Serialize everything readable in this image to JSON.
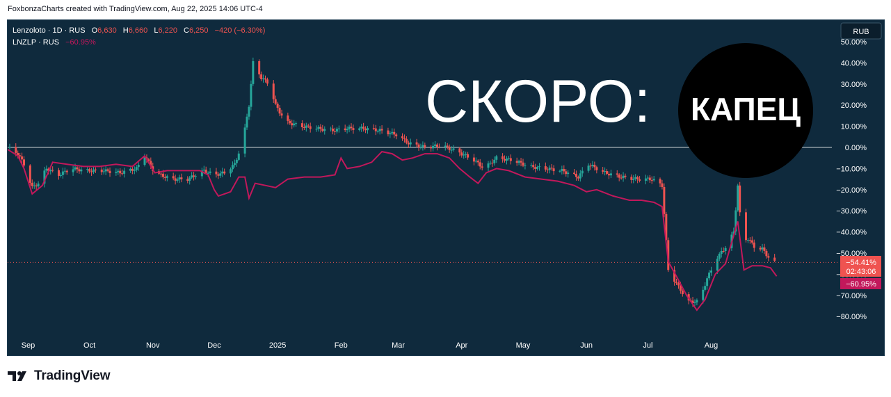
{
  "header": {
    "caption": "FoxbonzaCharts created with TradingView.com, Aug 22, 2025 14:06 UTC-4"
  },
  "legend": {
    "main": {
      "symbol": "Lenzoloto · 1D · RUS",
      "o_label": "O",
      "o_value": "6,630",
      "h_label": "H",
      "h_value": "6,660",
      "l_label": "L",
      "l_value": "6,220",
      "c_label": "C",
      "c_value": "6,250",
      "change": "−420 (−6.30%)"
    },
    "compare": {
      "symbol": "LNZLP · RUS",
      "value": "−60.95%"
    }
  },
  "currency_button": "RUB",
  "overlay": {
    "text": "СКОРО:",
    "badge_text": "КАПЕЦ"
  },
  "price_labels": {
    "last_pct": "−54.41%",
    "countdown": "02:43:06",
    "compare_pct": "−60.95%"
  },
  "footer": {
    "brand": "TradingView"
  },
  "colors": {
    "background": "#0f2a3d",
    "up": "#26a69a",
    "down": "#ef5350",
    "compare_line": "#c2185b",
    "axis_text": "#ffffff",
    "zero_line": "#ffffff"
  },
  "chart_data": {
    "type": "line",
    "y_scale": "percent",
    "ylim": [
      -90,
      50
    ],
    "y_ticks": [
      "50.00%",
      "40.00%",
      "30.00%",
      "20.00%",
      "10.00%",
      "0.00%",
      "−10.00%",
      "−20.00%",
      "−30.00%",
      "−40.00%",
      "−50.00%",
      "−60.00%",
      "−70.00%",
      "−80.00%"
    ],
    "y_tick_values": [
      50,
      40,
      30,
      20,
      10,
      0,
      -10,
      -20,
      -30,
      -40,
      -50,
      -60,
      -70,
      -80
    ],
    "x_ticks": [
      {
        "label": "Sep",
        "date": "2024-09-01"
      },
      {
        "label": "Oct",
        "date": "2024-10-01"
      },
      {
        "label": "Nov",
        "date": "2024-11-01"
      },
      {
        "label": "Dec",
        "date": "2024-12-01"
      },
      {
        "label": "2025",
        "date": "2025-01-01"
      },
      {
        "label": "Feb",
        "date": "2025-02-01"
      },
      {
        "label": "Mar",
        "date": "2025-03-01"
      },
      {
        "label": "Apr",
        "date": "2025-04-01"
      },
      {
        "label": "May",
        "date": "2025-05-01"
      },
      {
        "label": "Jun",
        "date": "2025-06-01"
      },
      {
        "label": "Jul",
        "date": "2025-07-01"
      },
      {
        "label": "Aug",
        "date": "2025-08-01"
      }
    ],
    "xlim": [
      "2024-08-22",
      "2025-09-29"
    ],
    "series": [
      {
        "name": "Lenzoloto",
        "style": "candlestick",
        "points": [
          {
            "date": "2024-08-22",
            "value": 0
          },
          {
            "date": "2024-08-27",
            "value": -3
          },
          {
            "date": "2024-08-30",
            "value": -8
          },
          {
            "date": "2024-09-03",
            "value": -19
          },
          {
            "date": "2024-09-06",
            "value": -17
          },
          {
            "date": "2024-09-10",
            "value": -10
          },
          {
            "date": "2024-09-16",
            "value": -13
          },
          {
            "date": "2024-09-22",
            "value": -10
          },
          {
            "date": "2024-09-30",
            "value": -11
          },
          {
            "date": "2024-10-08",
            "value": -11
          },
          {
            "date": "2024-10-16",
            "value": -12
          },
          {
            "date": "2024-10-24",
            "value": -10
          },
          {
            "date": "2024-10-28",
            "value": -4
          },
          {
            "date": "2024-11-02",
            "value": -12
          },
          {
            "date": "2024-11-10",
            "value": -15
          },
          {
            "date": "2024-11-18",
            "value": -15
          },
          {
            "date": "2024-11-26",
            "value": -11
          },
          {
            "date": "2024-12-01",
            "value": -13
          },
          {
            "date": "2024-12-06",
            "value": -12
          },
          {
            "date": "2024-12-11",
            "value": -8
          },
          {
            "date": "2024-12-15",
            "value": 3
          },
          {
            "date": "2024-12-18",
            "value": 20
          },
          {
            "date": "2024-12-20",
            "value": 40
          },
          {
            "date": "2024-12-24",
            "value": 33
          },
          {
            "date": "2024-12-28",
            "value": 30
          },
          {
            "date": "2024-12-31",
            "value": 20
          },
          {
            "date": "2025-01-05",
            "value": 12
          },
          {
            "date": "2025-01-13",
            "value": 10
          },
          {
            "date": "2025-01-20",
            "value": 9
          },
          {
            "date": "2025-01-28",
            "value": 8
          },
          {
            "date": "2025-02-04",
            "value": 9
          },
          {
            "date": "2025-02-12",
            "value": 9
          },
          {
            "date": "2025-02-20",
            "value": 8
          },
          {
            "date": "2025-02-28",
            "value": 6
          },
          {
            "date": "2025-03-06",
            "value": 2
          },
          {
            "date": "2025-03-14",
            "value": 0
          },
          {
            "date": "2025-03-22",
            "value": 1
          },
          {
            "date": "2025-03-30",
            "value": -2
          },
          {
            "date": "2025-04-07",
            "value": -6
          },
          {
            "date": "2025-04-12",
            "value": -10
          },
          {
            "date": "2025-04-18",
            "value": -5
          },
          {
            "date": "2025-04-26",
            "value": -6
          },
          {
            "date": "2025-05-04",
            "value": -9
          },
          {
            "date": "2025-05-12",
            "value": -10
          },
          {
            "date": "2025-05-20",
            "value": -11
          },
          {
            "date": "2025-05-28",
            "value": -14
          },
          {
            "date": "2025-06-02",
            "value": -8
          },
          {
            "date": "2025-06-10",
            "value": -12
          },
          {
            "date": "2025-06-18",
            "value": -14
          },
          {
            "date": "2025-06-26",
            "value": -15
          },
          {
            "date": "2025-07-03",
            "value": -15
          },
          {
            "date": "2025-07-08",
            "value": -18
          },
          {
            "date": "2025-07-11",
            "value": -58
          },
          {
            "date": "2025-07-16",
            "value": -66
          },
          {
            "date": "2025-07-21",
            "value": -73
          },
          {
            "date": "2025-07-26",
            "value": -73
          },
          {
            "date": "2025-07-30",
            "value": -62
          },
          {
            "date": "2025-08-04",
            "value": -52
          },
          {
            "date": "2025-08-09",
            "value": -46
          },
          {
            "date": "2025-08-12",
            "value": -40
          },
          {
            "date": "2025-08-14",
            "value": -18
          },
          {
            "date": "2025-08-16",
            "value": -45
          },
          {
            "date": "2025-08-19",
            "value": -43
          },
          {
            "date": "2025-08-22",
            "value": -47
          },
          {
            "date": "2025-08-26",
            "value": -48
          },
          {
            "date": "2025-08-29",
            "value": -52
          },
          {
            "date": "2025-09-01",
            "value": -54.41
          }
        ]
      },
      {
        "name": "LNZLP",
        "style": "line",
        "points": [
          {
            "date": "2024-08-22",
            "value": -1
          },
          {
            "date": "2024-08-27",
            "value": -4
          },
          {
            "date": "2024-08-30",
            "value": -10
          },
          {
            "date": "2024-09-03",
            "value": -22
          },
          {
            "date": "2024-09-08",
            "value": -18
          },
          {
            "date": "2024-09-13",
            "value": -7
          },
          {
            "date": "2024-09-20",
            "value": -8
          },
          {
            "date": "2024-09-28",
            "value": -9
          },
          {
            "date": "2024-10-06",
            "value": -9
          },
          {
            "date": "2024-10-14",
            "value": -8
          },
          {
            "date": "2024-10-22",
            "value": -9
          },
          {
            "date": "2024-10-28",
            "value": -4
          },
          {
            "date": "2024-11-02",
            "value": -12
          },
          {
            "date": "2024-11-08",
            "value": -11
          },
          {
            "date": "2024-11-16",
            "value": -11
          },
          {
            "date": "2024-11-24",
            "value": -11
          },
          {
            "date": "2024-11-28",
            "value": -13
          },
          {
            "date": "2024-12-01",
            "value": -20
          },
          {
            "date": "2024-12-03",
            "value": -23
          },
          {
            "date": "2024-12-06",
            "value": -22
          },
          {
            "date": "2024-12-09",
            "value": -21
          },
          {
            "date": "2024-12-13",
            "value": -14
          },
          {
            "date": "2024-12-16",
            "value": -14
          },
          {
            "date": "2024-12-18",
            "value": -24
          },
          {
            "date": "2024-12-21",
            "value": -17
          },
          {
            "date": "2024-12-26",
            "value": -18
          },
          {
            "date": "2024-12-31",
            "value": -19
          },
          {
            "date": "2025-01-06",
            "value": -15
          },
          {
            "date": "2025-01-14",
            "value": -14
          },
          {
            "date": "2025-01-22",
            "value": -14
          },
          {
            "date": "2025-01-29",
            "value": -13
          },
          {
            "date": "2025-02-01",
            "value": -5
          },
          {
            "date": "2025-02-04",
            "value": -10
          },
          {
            "date": "2025-02-10",
            "value": -9
          },
          {
            "date": "2025-02-16",
            "value": -7
          },
          {
            "date": "2025-02-21",
            "value": -2
          },
          {
            "date": "2025-02-26",
            "value": -3
          },
          {
            "date": "2025-03-03",
            "value": -6
          },
          {
            "date": "2025-03-08",
            "value": -5
          },
          {
            "date": "2025-03-14",
            "value": -3
          },
          {
            "date": "2025-03-20",
            "value": -3
          },
          {
            "date": "2025-03-26",
            "value": -5
          },
          {
            "date": "2025-03-31",
            "value": -10
          },
          {
            "date": "2025-04-05",
            "value": -14
          },
          {
            "date": "2025-04-09",
            "value": -17
          },
          {
            "date": "2025-04-13",
            "value": -12
          },
          {
            "date": "2025-04-18",
            "value": -10
          },
          {
            "date": "2025-04-24",
            "value": -11
          },
          {
            "date": "2025-05-02",
            "value": -14
          },
          {
            "date": "2025-05-10",
            "value": -15
          },
          {
            "date": "2025-05-18",
            "value": -16
          },
          {
            "date": "2025-05-26",
            "value": -18
          },
          {
            "date": "2025-06-01",
            "value": -21
          },
          {
            "date": "2025-06-06",
            "value": -20
          },
          {
            "date": "2025-06-14",
            "value": -23
          },
          {
            "date": "2025-06-22",
            "value": -25
          },
          {
            "date": "2025-06-28",
            "value": -25
          },
          {
            "date": "2025-07-04",
            "value": -26
          },
          {
            "date": "2025-07-08",
            "value": -28
          },
          {
            "date": "2025-07-11",
            "value": -54
          },
          {
            "date": "2025-07-15",
            "value": -61
          },
          {
            "date": "2025-07-20",
            "value": -70
          },
          {
            "date": "2025-07-25",
            "value": -77
          },
          {
            "date": "2025-07-29",
            "value": -72
          },
          {
            "date": "2025-08-03",
            "value": -60
          },
          {
            "date": "2025-08-08",
            "value": -55
          },
          {
            "date": "2025-08-11",
            "value": -45
          },
          {
            "date": "2025-08-14",
            "value": -35
          },
          {
            "date": "2025-08-17",
            "value": -58
          },
          {
            "date": "2025-08-21",
            "value": -56
          },
          {
            "date": "2025-08-26",
            "value": -56
          },
          {
            "date": "2025-08-30",
            "value": -57
          },
          {
            "date": "2025-09-02",
            "value": -60.95
          }
        ]
      }
    ]
  }
}
